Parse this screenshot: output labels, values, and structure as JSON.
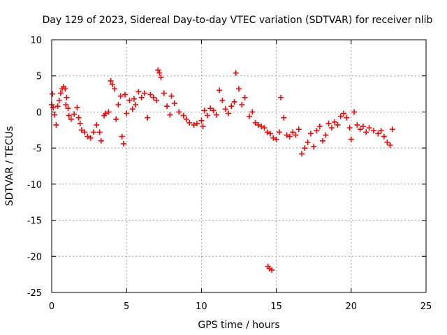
{
  "chart_data": {
    "type": "scatter",
    "title": "Day 129 of 2023, Sidereal Day-to-day VTEC variation (SDTVAR) for receiver nlib",
    "xlabel": "GPS time / hours",
    "ylabel": "SDTVAR / TECUs",
    "xlim": [
      0,
      25
    ],
    "ylim": [
      -25,
      10
    ],
    "xticks": [
      0,
      5,
      10,
      15,
      20,
      25
    ],
    "yticks": [
      -25,
      -20,
      -15,
      -10,
      -5,
      0,
      5,
      10
    ],
    "grid": true,
    "marker": "plus",
    "color": "#ff0000",
    "series": [
      {
        "name": "SDTVAR",
        "points": [
          [
            0.0,
            1.0
          ],
          [
            0.05,
            2.5
          ],
          [
            0.1,
            0.6
          ],
          [
            0.2,
            -0.4
          ],
          [
            0.3,
            -1.8
          ],
          [
            0.4,
            0.8
          ],
          [
            0.5,
            1.6
          ],
          [
            0.6,
            2.6
          ],
          [
            0.7,
            3.2
          ],
          [
            0.8,
            3.5
          ],
          [
            0.9,
            3.2
          ],
          [
            1.0,
            2.0
          ],
          [
            1.1,
            0.5
          ],
          [
            0.95,
            1.0
          ],
          [
            1.15,
            -0.5
          ],
          [
            1.3,
            -1.0
          ],
          [
            1.5,
            -0.3
          ],
          [
            1.7,
            0.6
          ],
          [
            1.8,
            -0.8
          ],
          [
            1.9,
            -1.6
          ],
          [
            2.0,
            -2.5
          ],
          [
            2.2,
            -2.8
          ],
          [
            2.4,
            -3.4
          ],
          [
            2.6,
            -3.6
          ],
          [
            2.8,
            -2.8
          ],
          [
            3.0,
            -1.8
          ],
          [
            3.2,
            -2.8
          ],
          [
            3.3,
            -4.0
          ],
          [
            3.5,
            -0.5
          ],
          [
            3.6,
            -0.2
          ],
          [
            3.8,
            0.0
          ],
          [
            3.95,
            4.3
          ],
          [
            4.05,
            3.8
          ],
          [
            4.2,
            3.2
          ],
          [
            4.3,
            -1.0
          ],
          [
            4.45,
            1.0
          ],
          [
            4.6,
            2.2
          ],
          [
            4.7,
            -3.4
          ],
          [
            4.8,
            -4.4
          ],
          [
            4.9,
            2.4
          ],
          [
            5.0,
            -0.2
          ],
          [
            5.2,
            1.6
          ],
          [
            5.4,
            0.4
          ],
          [
            5.5,
            1.8
          ],
          [
            5.6,
            1.0
          ],
          [
            5.8,
            2.8
          ],
          [
            6.0,
            2.0
          ],
          [
            6.2,
            2.6
          ],
          [
            6.4,
            -0.8
          ],
          [
            6.6,
            2.4
          ],
          [
            6.8,
            2.0
          ],
          [
            7.0,
            1.6
          ],
          [
            7.1,
            5.8
          ],
          [
            7.2,
            5.4
          ],
          [
            7.3,
            4.8
          ],
          [
            7.5,
            2.6
          ],
          [
            7.7,
            0.8
          ],
          [
            7.9,
            -0.4
          ],
          [
            8.0,
            2.2
          ],
          [
            8.2,
            1.2
          ],
          [
            8.5,
            0.0
          ],
          [
            8.8,
            -0.5
          ],
          [
            9.0,
            -1.0
          ],
          [
            9.2,
            -1.5
          ],
          [
            9.5,
            -1.8
          ],
          [
            9.7,
            -1.6
          ],
          [
            10.0,
            -1.2
          ],
          [
            10.1,
            -2.0
          ],
          [
            10.2,
            0.2
          ],
          [
            10.4,
            -0.5
          ],
          [
            10.6,
            0.5
          ],
          [
            10.8,
            0.2
          ],
          [
            11.0,
            -0.4
          ],
          [
            11.2,
            3.0
          ],
          [
            11.4,
            1.6
          ],
          [
            11.6,
            0.4
          ],
          [
            11.8,
            -0.2
          ],
          [
            12.0,
            0.8
          ],
          [
            12.2,
            1.4
          ],
          [
            12.3,
            5.4
          ],
          [
            12.5,
            3.2
          ],
          [
            12.7,
            1.0
          ],
          [
            12.9,
            2.0
          ],
          [
            13.2,
            -0.6
          ],
          [
            13.4,
            0.0
          ],
          [
            13.6,
            -1.5
          ],
          [
            13.8,
            -1.8
          ],
          [
            14.0,
            -2.0
          ],
          [
            14.2,
            -2.2
          ],
          [
            14.4,
            -2.8
          ],
          [
            14.45,
            -21.4
          ],
          [
            14.55,
            -21.7
          ],
          [
            14.7,
            -21.9
          ],
          [
            14.6,
            -3.0
          ],
          [
            14.8,
            -3.6
          ],
          [
            15.0,
            -3.8
          ],
          [
            15.2,
            -2.8
          ],
          [
            15.3,
            2.0
          ],
          [
            15.5,
            -0.8
          ],
          [
            15.7,
            -3.2
          ],
          [
            15.9,
            -3.4
          ],
          [
            16.1,
            -2.8
          ],
          [
            16.3,
            -3.2
          ],
          [
            16.5,
            -2.4
          ],
          [
            16.7,
            -5.8
          ],
          [
            16.9,
            -5.0
          ],
          [
            17.1,
            -4.2
          ],
          [
            17.3,
            -3.0
          ],
          [
            17.5,
            -4.8
          ],
          [
            17.7,
            -2.6
          ],
          [
            17.9,
            -2.0
          ],
          [
            18.1,
            -4.0
          ],
          [
            18.3,
            -3.2
          ],
          [
            18.5,
            -1.6
          ],
          [
            18.7,
            -2.2
          ],
          [
            18.9,
            -1.4
          ],
          [
            19.1,
            -1.8
          ],
          [
            19.3,
            -0.6
          ],
          [
            19.5,
            -0.2
          ],
          [
            19.7,
            -0.8
          ],
          [
            19.9,
            -2.2
          ],
          [
            20.0,
            -3.8
          ],
          [
            20.2,
            0.0
          ],
          [
            20.4,
            -1.8
          ],
          [
            20.6,
            -2.4
          ],
          [
            20.8,
            -2.0
          ],
          [
            21.0,
            -2.8
          ],
          [
            21.2,
            -2.2
          ],
          [
            21.5,
            -2.6
          ],
          [
            21.8,
            -3.0
          ],
          [
            22.0,
            -2.6
          ],
          [
            22.2,
            -3.4
          ],
          [
            22.4,
            -4.2
          ],
          [
            22.6,
            -4.6
          ],
          [
            22.75,
            -2.4
          ]
        ]
      }
    ]
  }
}
